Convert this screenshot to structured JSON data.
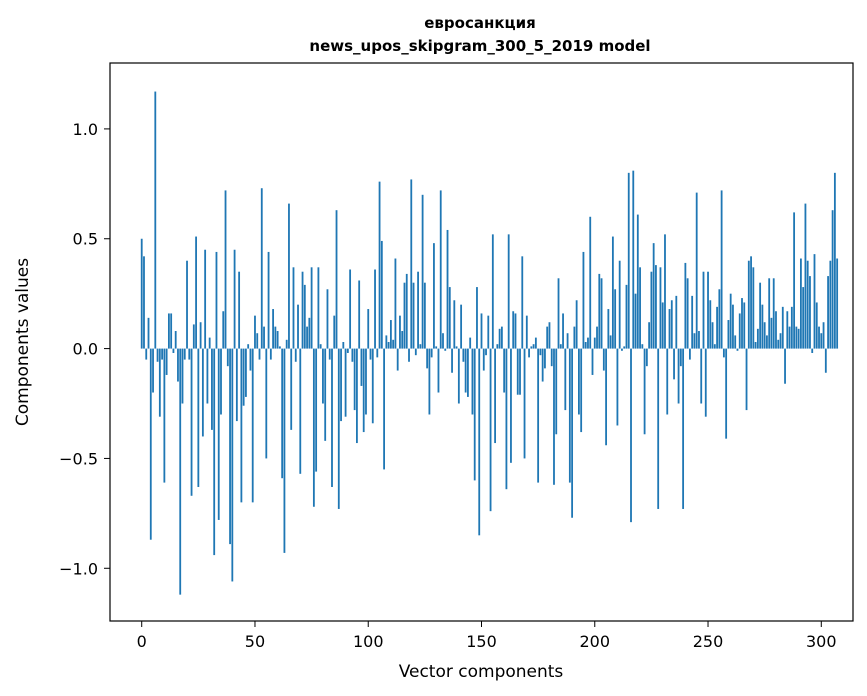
{
  "chart_data": {
    "type": "bar",
    "title_line1": "евросанкция",
    "title_line2": "news_upos_skipgram_300_5_2019 model",
    "xlabel": "Vector components",
    "ylabel": "Components values",
    "xlim": [
      -14,
      314
    ],
    "ylim": [
      -1.24,
      1.3
    ],
    "xticks": [
      0,
      50,
      100,
      150,
      200,
      250,
      300
    ],
    "xtick_labels": [
      "0",
      "50",
      "100",
      "150",
      "200",
      "250",
      "300"
    ],
    "yticks": [
      -1.0,
      -0.5,
      0.0,
      0.5,
      1.0
    ],
    "ytick_labels": [
      "−1.0",
      "−0.5",
      "0.0",
      "0.5",
      "1.0"
    ],
    "bar_color": "#1f77b4",
    "values": [
      0.5,
      0.42,
      -0.05,
      0.14,
      -0.87,
      -0.2,
      1.17,
      -0.06,
      -0.31,
      -0.05,
      -0.61,
      -0.12,
      0.16,
      0.16,
      -0.02,
      0.08,
      -0.15,
      -1.12,
      -0.25,
      -0.05,
      0.4,
      -0.05,
      -0.67,
      0.11,
      0.51,
      -0.63,
      0.12,
      -0.4,
      0.45,
      -0.25,
      0.05,
      -0.37,
      -0.94,
      0.44,
      -0.78,
      -0.3,
      0.17,
      0.72,
      -0.08,
      -0.89,
      -1.06,
      0.45,
      -0.33,
      0.35,
      -0.7,
      -0.26,
      -0.22,
      0.02,
      -0.1,
      -0.7,
      0.15,
      0.07,
      -0.05,
      0.73,
      0.1,
      -0.5,
      0.44,
      -0.05,
      0.18,
      0.1,
      0.08,
      0.01,
      -0.59,
      -0.93,
      0.04,
      0.66,
      -0.37,
      0.37,
      -0.06,
      0.2,
      -0.57,
      0.35,
      0.29,
      0.1,
      0.14,
      0.37,
      -0.72,
      -0.56,
      0.37,
      0.02,
      -0.25,
      -0.42,
      0.27,
      -0.05,
      -0.63,
      0.15,
      0.63,
      -0.73,
      -0.33,
      0.03,
      -0.31,
      -0.02,
      0.36,
      -0.06,
      -0.28,
      -0.43,
      0.31,
      -0.17,
      -0.38,
      -0.3,
      0.18,
      -0.05,
      -0.34,
      0.36,
      -0.04,
      0.76,
      0.49,
      -0.55,
      0.06,
      0.03,
      0.13,
      0.04,
      0.41,
      -0.1,
      0.15,
      0.08,
      0.3,
      0.34,
      -0.06,
      0.77,
      0.3,
      -0.03,
      0.35,
      0.02,
      0.7,
      0.3,
      -0.09,
      -0.3,
      -0.04,
      0.48,
      0.01,
      -0.2,
      0.72,
      0.07,
      -0.01,
      0.54,
      0.28,
      -0.11,
      0.22,
      0.01,
      -0.25,
      0.2,
      -0.06,
      -0.2,
      -0.22,
      0.05,
      -0.3,
      -0.6,
      0.28,
      -0.85,
      0.16,
      -0.1,
      -0.03,
      0.15,
      -0.74,
      0.52,
      -0.43,
      0.02,
      0.09,
      0.1,
      -0.2,
      -0.64,
      0.52,
      -0.52,
      0.17,
      0.16,
      -0.21,
      -0.21,
      0.42,
      -0.5,
      0.15,
      -0.04,
      0.01,
      0.02,
      0.05,
      -0.61,
      -0.03,
      -0.15,
      -0.09,
      0.1,
      0.12,
      -0.08,
      -0.62,
      -0.39,
      0.32,
      0.02,
      0.16,
      -0.28,
      0.07,
      -0.61,
      -0.77,
      0.1,
      0.22,
      -0.3,
      -0.38,
      0.44,
      0.03,
      0.05,
      0.6,
      -0.12,
      0.05,
      0.1,
      0.34,
      0.32,
      -0.1,
      -0.44,
      0.18,
      0.06,
      0.51,
      0.27,
      -0.35,
      0.4,
      -0.01,
      0.01,
      0.29,
      0.8,
      -0.79,
      0.81,
      0.25,
      0.61,
      0.37,
      0.02,
      -0.39,
      -0.08,
      0.12,
      0.35,
      0.48,
      0.38,
      -0.73,
      0.37,
      0.21,
      0.52,
      -0.3,
      0.18,
      0.22,
      -0.14,
      0.24,
      -0.25,
      -0.08,
      -0.73,
      0.39,
      0.32,
      -0.05,
      0.24,
      0.07,
      0.71,
      0.08,
      -0.25,
      0.35,
      -0.31,
      0.35,
      0.22,
      0.12,
      0.02,
      0.19,
      0.27,
      0.72,
      -0.04,
      -0.41,
      0.13,
      0.25,
      0.2,
      0.06,
      -0.01,
      0.16,
      0.23,
      0.21,
      -0.28,
      0.4,
      0.42,
      0.37,
      0.03,
      0.09,
      0.3,
      0.2,
      0.12,
      0.06,
      0.32,
      0.14,
      0.32,
      0.17,
      0.04,
      0.07,
      0.19,
      -0.16,
      0.17,
      0.1,
      0.19,
      0.62,
      0.1,
      0.09,
      0.41,
      0.28,
      0.66,
      0.4,
      0.33,
      -0.02,
      0.43,
      0.21,
      0.1,
      0.07,
      0.12,
      -0.11,
      0.33,
      0.4,
      0.63,
      0.8,
      0.41
    ]
  }
}
